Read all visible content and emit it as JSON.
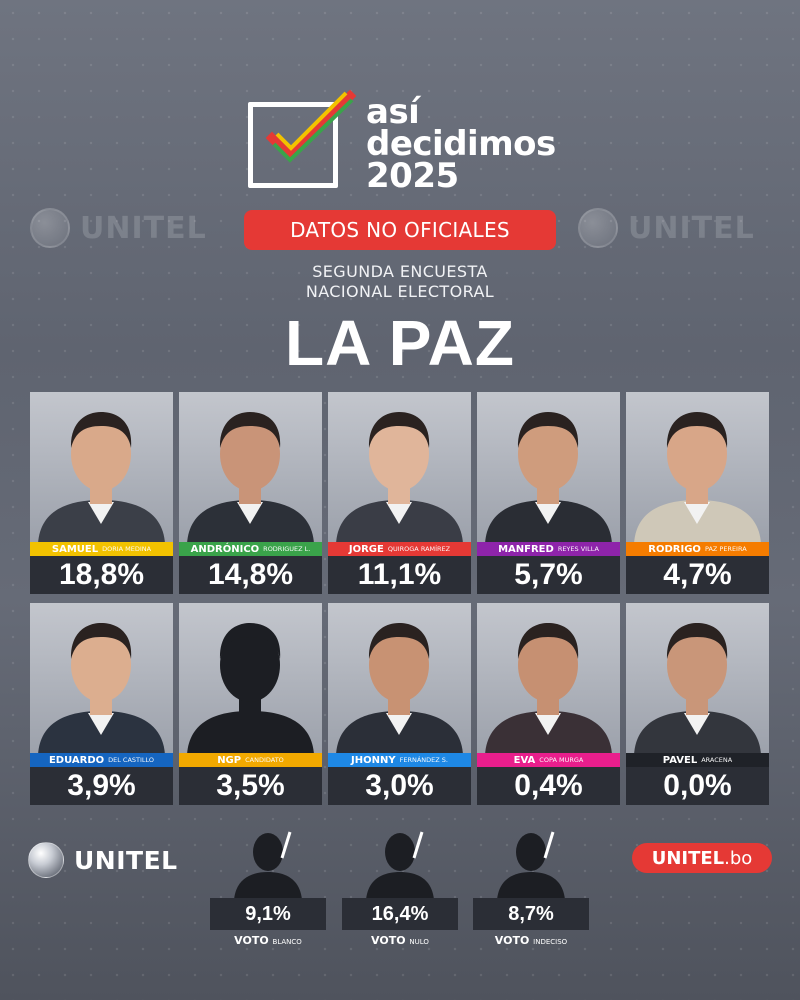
{
  "header": {
    "logo_line1": "así",
    "logo_line2": "decidimos",
    "logo_line3": "2025",
    "badge": "DATOS NO OFICIALES",
    "subtitle_line1": "SEGUNDA ENCUESTA",
    "subtitle_line2": "NACIONAL ELECTORAL",
    "title": "LA PAZ",
    "watermark": "UNITEL"
  },
  "candidates": [
    {
      "first": "SAMUEL",
      "last": "DORIA MEDINA",
      "pct": "18,8%",
      "value": 18.8,
      "color": "#f2c200",
      "silhouette": false,
      "suit": "#3b3f48"
    },
    {
      "first": "ANDRÓNICO",
      "last": "RODRIGUEZ L.",
      "pct": "14,8%",
      "value": 14.8,
      "color": "#3aa34a",
      "silhouette": false,
      "suit": "#2c3038"
    },
    {
      "first": "JORGE",
      "last": "QUIROGA RAMÍREZ",
      "pct": "11,1%",
      "value": 11.1,
      "color": "#e53935",
      "silhouette": false,
      "suit": "#3a3d46"
    },
    {
      "first": "MANFRED",
      "last": "REYES VILLA",
      "pct": "5,7%",
      "value": 5.7,
      "color": "#8e24aa",
      "silhouette": false,
      "suit": "#2a2d34"
    },
    {
      "first": "RODRIGO",
      "last": "PAZ PEREIRA",
      "pct": "4,7%",
      "value": 4.7,
      "color": "#f57c00",
      "silhouette": false,
      "suit": "#cfc8b8"
    },
    {
      "first": "EDUARDO",
      "last": "DEL CASTILLO",
      "pct": "3,9%",
      "value": 3.9,
      "color": "#1565c0",
      "silhouette": false,
      "suit": "#2b3340"
    },
    {
      "first": "NGP",
      "last": "CANDIDATO",
      "pct": "3,5%",
      "value": 3.5,
      "color": "#f2a900",
      "silhouette": true,
      "suit": "#2a2d33"
    },
    {
      "first": "JHONNY",
      "last": "FERNÁNDEZ S.",
      "pct": "3,0%",
      "value": 3.0,
      "color": "#1e88e5",
      "silhouette": false,
      "suit": "#2b2f38"
    },
    {
      "first": "EVA",
      "last": "COPA MURGA",
      "pct": "0,4%",
      "value": 0.4,
      "color": "#e91e8c",
      "silhouette": false,
      "suit": "#3a3036"
    },
    {
      "first": "PAVEL",
      "last": "ARACENA",
      "pct": "0,0%",
      "value": 0.0,
      "color": "#1f2228",
      "silhouette": false,
      "suit": "#33363d"
    }
  ],
  "votes": [
    {
      "label": "VOTO",
      "sub": "BLANCO",
      "pct": "9,1%",
      "value": 9.1
    },
    {
      "label": "VOTO",
      "sub": "NULO",
      "pct": "16,4%",
      "value": 16.4
    },
    {
      "label": "VOTO",
      "sub": "INDECISO",
      "pct": "8,7%",
      "value": 8.7
    }
  ],
  "footer": {
    "brand_left": "UNITEL",
    "brand_right_main": "UNITEL",
    "brand_right_domain": ".bo"
  }
}
